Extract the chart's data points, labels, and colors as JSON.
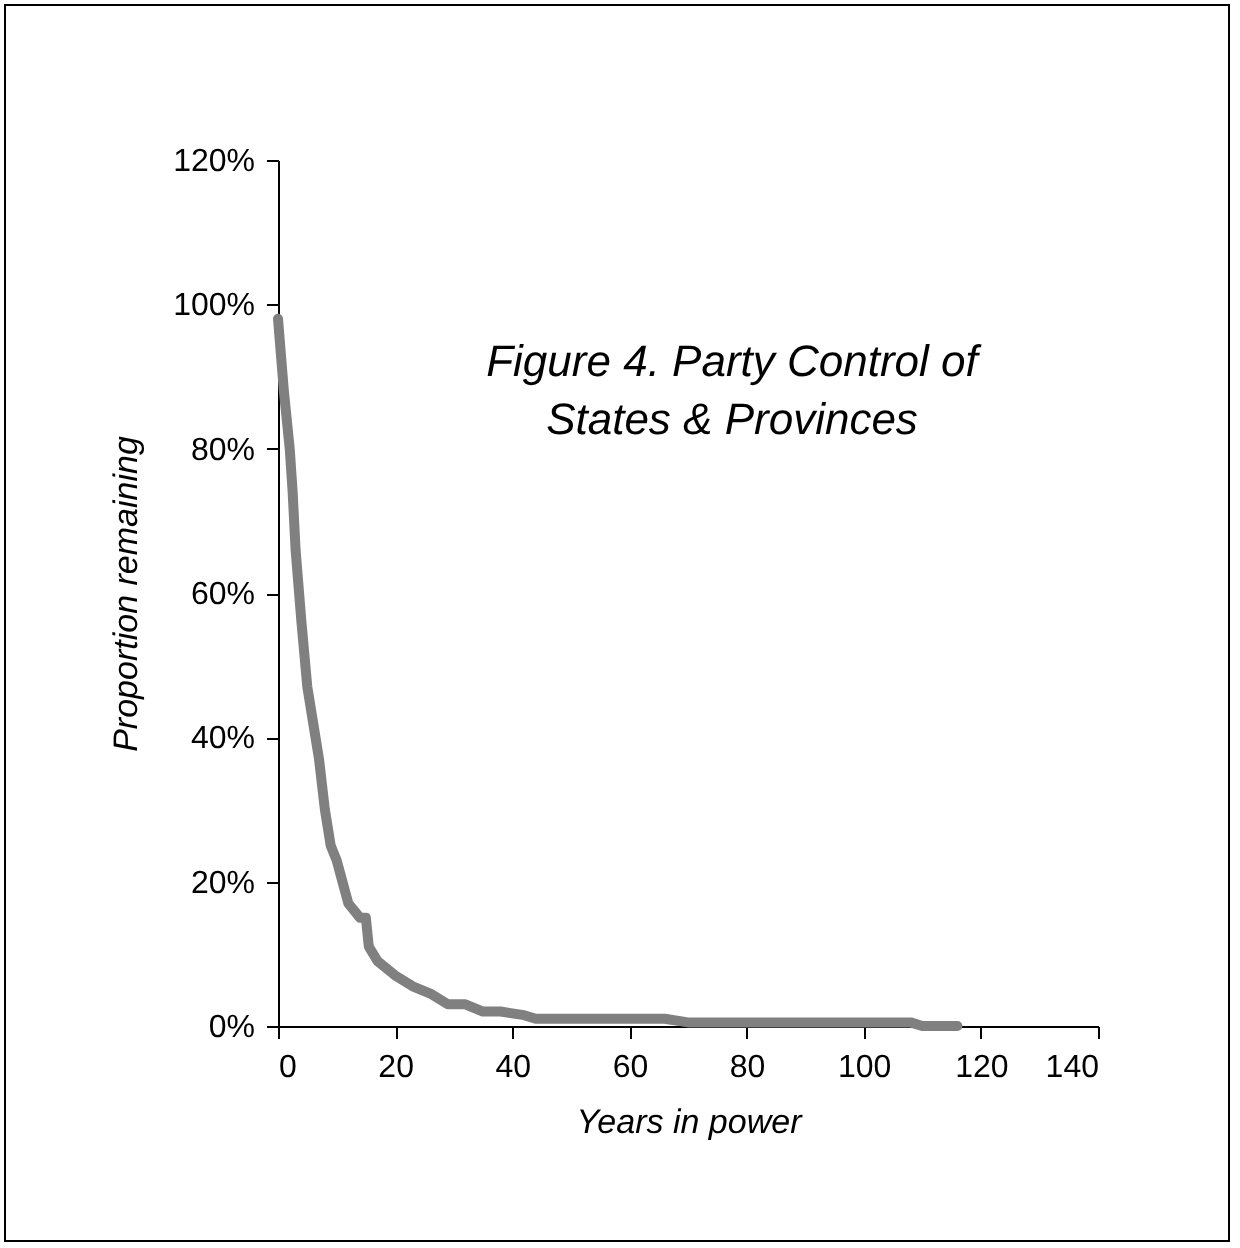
{
  "chart_data": {
    "type": "line",
    "title": "Figure 4. Party Control of States & Provinces",
    "xlabel": "Years in power",
    "ylabel": "Proportion remaining",
    "x": [
      0,
      0.5,
      1,
      2,
      2.5,
      3,
      4,
      5,
      6,
      7,
      8,
      9,
      10,
      11,
      12,
      14,
      15,
      15.5,
      17,
      20,
      23,
      26,
      29,
      32,
      35,
      38,
      42,
      44,
      60,
      66,
      70,
      100,
      108,
      110,
      116
    ],
    "series": [
      {
        "color": "#808080",
        "values": [
          98,
          93,
          88,
          80,
          74,
          66,
          56,
          47,
          42,
          37,
          30,
          25,
          23,
          20,
          17,
          15,
          15,
          11,
          9,
          7,
          5.5,
          4.5,
          3,
          3,
          2,
          2,
          1.5,
          1,
          1,
          1,
          0.5,
          0.5,
          0.5,
          0,
          0
        ]
      }
    ],
    "xlim": [
      0,
      140
    ],
    "xticks": [
      0,
      20,
      40,
      60,
      80,
      100,
      120,
      140
    ],
    "ylim": [
      0,
      120
    ],
    "yticks": [
      {
        "value": 0,
        "label": "0%"
      },
      {
        "value": 20,
        "label": "20%"
      },
      {
        "value": 40,
        "label": "40%"
      },
      {
        "value": 60,
        "label": "60%"
      },
      {
        "value": 80,
        "label": "80%"
      },
      {
        "value": 100,
        "label": "100%"
      },
      {
        "value": 120,
        "label": "120%"
      }
    ],
    "grid": false,
    "marker": "none",
    "line_style": "solid"
  }
}
